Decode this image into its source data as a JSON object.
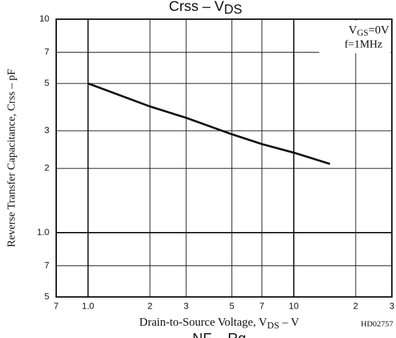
{
  "chart_data": {
    "type": "line",
    "title": [
      "Crss  –  V",
      "DS"
    ],
    "xlabel": [
      "Drain-to-Source Voltage, V",
      "DS",
      " – V"
    ],
    "ylabel": "Reverse Transfer Capacitance, Crss  –  pF",
    "annotation": [
      [
        "V",
        "GS",
        "=0V"
      ],
      [
        "f=1MHz"
      ]
    ],
    "code": "HD02757",
    "next_title": [
      "NF  –  Rg"
    ],
    "log_x": true,
    "log_y": true,
    "grid": true,
    "xlim": [
      0.7,
      30
    ],
    "ylim": [
      0.5,
      10
    ],
    "xticks": [
      {
        "value": 0.7,
        "label": "7"
      },
      {
        "value": 1,
        "label": "1.0"
      },
      2,
      3,
      5,
      7,
      10,
      {
        "value": 20,
        "label": "2"
      },
      {
        "value": 30,
        "label": "3"
      }
    ],
    "yticks": [
      {
        "value": 0.5,
        "label": "5"
      },
      {
        "value": 0.7,
        "label": "7"
      },
      {
        "value": 1,
        "label": "1.0"
      },
      2,
      3,
      5,
      7,
      10
    ],
    "series": [
      {
        "color": "#111111",
        "x": [
          1,
          2,
          3,
          5,
          7,
          10,
          15
        ],
        "values": [
          5,
          3.9,
          3.45,
          2.89,
          2.6,
          2.37,
          2.1
        ]
      }
    ]
  }
}
